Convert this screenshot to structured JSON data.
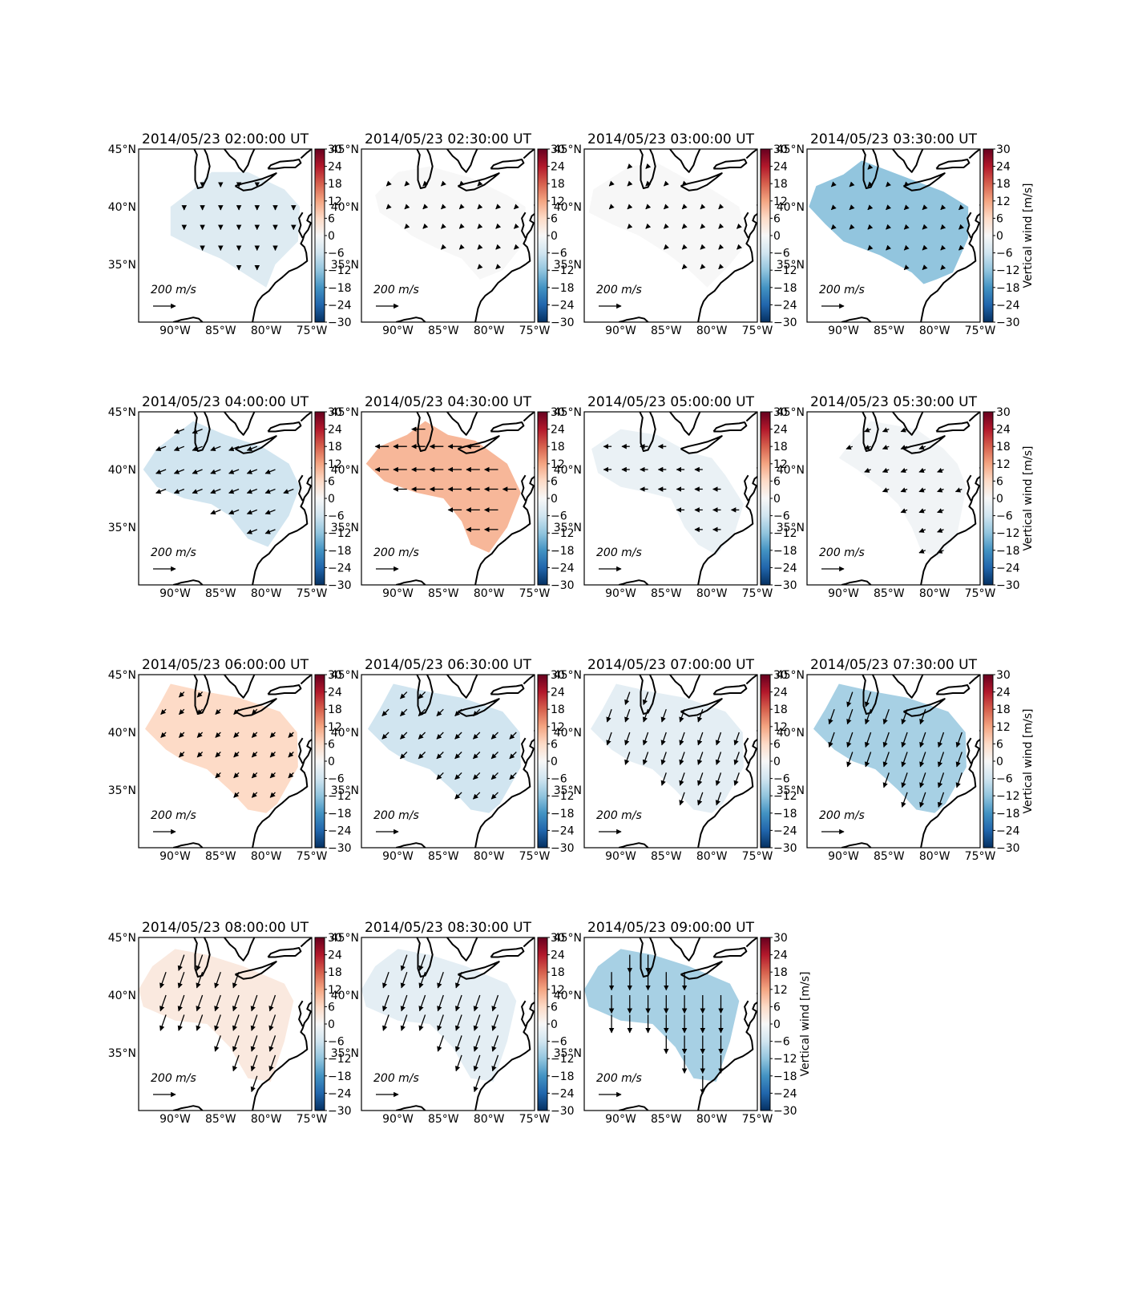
{
  "figure": {
    "colorbar_label": "Vertical wind [m/s]",
    "colormap": "RdBu_r",
    "colorbar_ticks": [
      "30",
      "24",
      "18",
      "12",
      "6",
      "0",
      "−6",
      "−12",
      "−18",
      "−24",
      "−30"
    ],
    "lat_ticks": [
      "45°N",
      "40°N",
      "35°N"
    ],
    "lon_ticks": [
      "90°W",
      "85°W",
      "80°W",
      "75°W"
    ],
    "reference_vector_label": "200 m/s",
    "colors": {
      "positive_max": "#67001f",
      "negative_max": "#053061",
      "zero": "#f7f7f7"
    }
  },
  "chart_data": [
    {
      "type": "heatmap",
      "title": "2014/05/23 02:00:00 UT",
      "vertical_wind": -4,
      "horizontal_wind": {
        "direction": "S",
        "speed": 15
      },
      "colorbar_range": [
        -30,
        30
      ],
      "lat_range": [
        30,
        45
      ],
      "lon_range": [
        -94,
        -75
      ]
    },
    {
      "type": "heatmap",
      "title": "2014/05/23 02:30:00 UT",
      "vertical_wind": 0,
      "horizontal_wind": {
        "direction": "SW",
        "speed": 18
      },
      "colorbar_range": [
        -30,
        30
      ],
      "lat_range": [
        30,
        45
      ],
      "lon_range": [
        -94,
        -75
      ]
    },
    {
      "type": "heatmap",
      "title": "2014/05/23 03:00:00 UT",
      "vertical_wind": 0,
      "horizontal_wind": {
        "direction": "SW",
        "speed": 22
      },
      "colorbar_range": [
        -30,
        30
      ],
      "lat_range": [
        30,
        45
      ],
      "lon_range": [
        -94,
        -75
      ]
    },
    {
      "type": "heatmap",
      "title": "2014/05/23 03:30:00 UT",
      "vertical_wind": -12,
      "horizontal_wind": {
        "direction": "SW",
        "speed": 38
      },
      "colorbar_range": [
        -30,
        30
      ],
      "lat_range": [
        30,
        45
      ],
      "lon_range": [
        -94,
        -75
      ]
    },
    {
      "type": "heatmap",
      "title": "2014/05/23 04:00:00 UT",
      "vertical_wind": -6,
      "horizontal_wind": {
        "direction": "WSW",
        "speed": 95
      },
      "colorbar_range": [
        -30,
        30
      ],
      "lat_range": [
        30,
        45
      ],
      "lon_range": [
        -94,
        -75
      ]
    },
    {
      "type": "heatmap",
      "title": "2014/05/23 04:30:00 UT",
      "vertical_wind": 10,
      "horizontal_wind": {
        "direction": "W",
        "speed": 120
      },
      "colorbar_range": [
        -30,
        30
      ],
      "lat_range": [
        30,
        45
      ],
      "lon_range": [
        -94,
        -75
      ]
    },
    {
      "type": "heatmap",
      "title": "2014/05/23 05:00:00 UT",
      "vertical_wind": -2,
      "horizontal_wind": {
        "direction": "W",
        "speed": 70
      },
      "colorbar_range": [
        -30,
        30
      ],
      "lat_range": [
        30,
        45
      ],
      "lon_range": [
        -94,
        -75
      ]
    },
    {
      "type": "heatmap",
      "title": "2014/05/23 05:30:00 UT",
      "vertical_wind": -1,
      "horizontal_wind": {
        "direction": "WSW",
        "speed": 60
      },
      "colorbar_range": [
        -30,
        30
      ],
      "lat_range": [
        30,
        45
      ],
      "lon_range": [
        -94,
        -75
      ]
    },
    {
      "type": "heatmap",
      "title": "2014/05/23 06:00:00 UT",
      "vertical_wind": 6,
      "horizontal_wind": {
        "direction": "SW",
        "speed": 65
      },
      "colorbar_range": [
        -30,
        30
      ],
      "lat_range": [
        30,
        45
      ],
      "lon_range": [
        -94,
        -75
      ]
    },
    {
      "type": "heatmap",
      "title": "2014/05/23 06:30:00 UT",
      "vertical_wind": -6,
      "horizontal_wind": {
        "direction": "SW",
        "speed": 85
      },
      "colorbar_range": [
        -30,
        30
      ],
      "lat_range": [
        30,
        45
      ],
      "lon_range": [
        -94,
        -75
      ]
    },
    {
      "type": "heatmap",
      "title": "2014/05/23 07:00:00 UT",
      "vertical_wind": -3,
      "horizontal_wind": {
        "direction": "SSW",
        "speed": 120
      },
      "colorbar_range": [
        -30,
        30
      ],
      "lat_range": [
        30,
        45
      ],
      "lon_range": [
        -94,
        -75
      ]
    },
    {
      "type": "heatmap",
      "title": "2014/05/23 07:30:00 UT",
      "vertical_wind": -10,
      "horizontal_wind": {
        "direction": "SSW",
        "speed": 140
      },
      "colorbar_range": [
        -30,
        30
      ],
      "lat_range": [
        30,
        45
      ],
      "lon_range": [
        -94,
        -75
      ]
    },
    {
      "type": "heatmap",
      "title": "2014/05/23 08:00:00 UT",
      "vertical_wind": 3,
      "horizontal_wind": {
        "direction": "SSW",
        "speed": 150
      },
      "colorbar_range": [
        -30,
        30
      ],
      "lat_range": [
        30,
        45
      ],
      "lon_range": [
        -94,
        -75
      ]
    },
    {
      "type": "heatmap",
      "title": "2014/05/23 08:30:00 UT",
      "vertical_wind": -3,
      "horizontal_wind": {
        "direction": "SSW",
        "speed": 150
      },
      "colorbar_range": [
        -30,
        30
      ],
      "lat_range": [
        30,
        45
      ],
      "lon_range": [
        -94,
        -75
      ]
    },
    {
      "type": "heatmap",
      "title": "2014/05/23 09:00:00 UT",
      "vertical_wind": -10,
      "horizontal_wind": {
        "direction": "S",
        "speed": 160
      },
      "colorbar_range": [
        -30,
        30
      ],
      "lat_range": [
        30,
        45
      ],
      "lon_range": [
        -94,
        -75
      ]
    }
  ]
}
